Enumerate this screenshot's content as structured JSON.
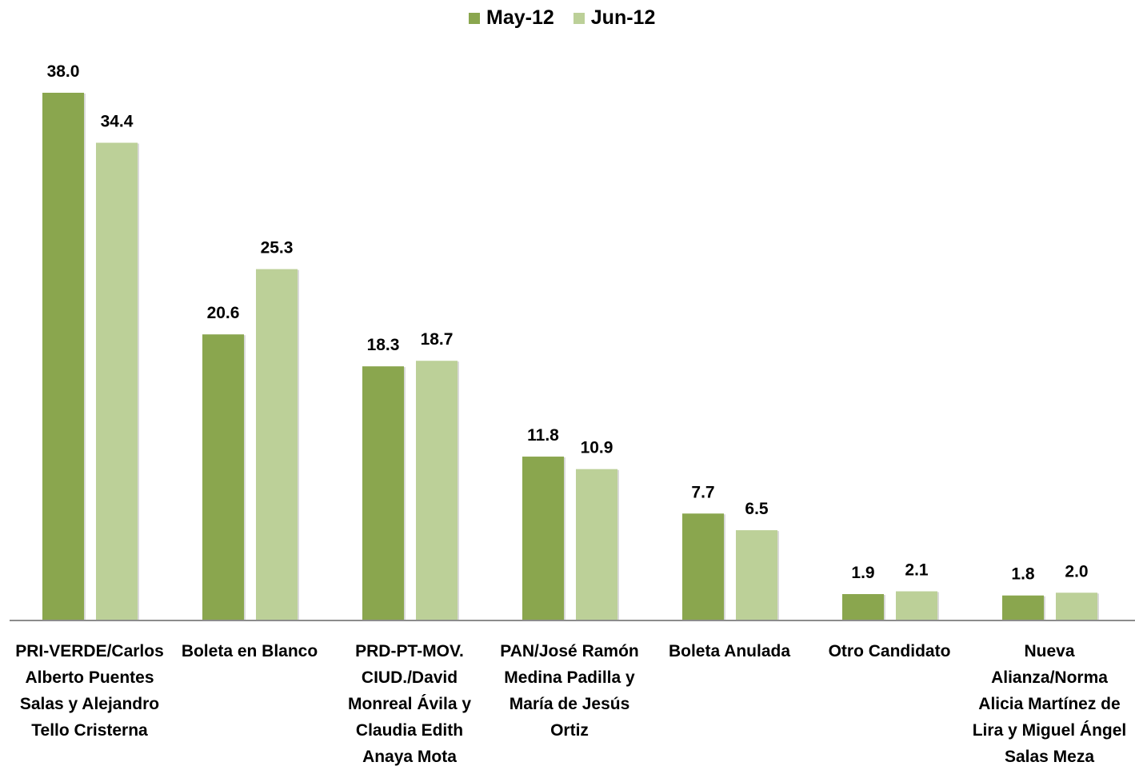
{
  "chart_data": {
    "type": "bar",
    "title": "",
    "xlabel": "",
    "ylabel": "",
    "ylim": [
      0,
      40
    ],
    "legend_position": "top-center",
    "grid": false,
    "categories": [
      "PRI-VERDE/Carlos Alberto Puentes Salas y Alejandro Tello Cristerna",
      "Boleta en Blanco",
      "PRD-PT-MOV. CIUD./David Monreal Ávila y Claudia Edith Anaya Mota",
      "PAN/José Ramón Medina Padilla y María de Jesús Ortiz",
      "Boleta Anulada",
      "Otro Candidato",
      "Nueva Alianza/Norma Alicia Martínez de Lira  y Miguel Ángel Salas Meza"
    ],
    "series": [
      {
        "name": "May-12",
        "color": "#8aa64e",
        "values": [
          38.0,
          20.6,
          18.3,
          11.8,
          7.7,
          1.9,
          1.8
        ],
        "labels": [
          "38.0",
          "20.6",
          "18.3",
          "11.8",
          "7.7",
          "1.9",
          "1.8"
        ]
      },
      {
        "name": "Jun-12",
        "color": "#bcd098",
        "values": [
          34.4,
          25.3,
          18.7,
          10.9,
          6.5,
          2.1,
          2.0
        ],
        "labels": [
          "34.4",
          "25.3",
          "18.7",
          "10.9",
          "6.5",
          "2.1",
          "2.0"
        ]
      }
    ]
  }
}
